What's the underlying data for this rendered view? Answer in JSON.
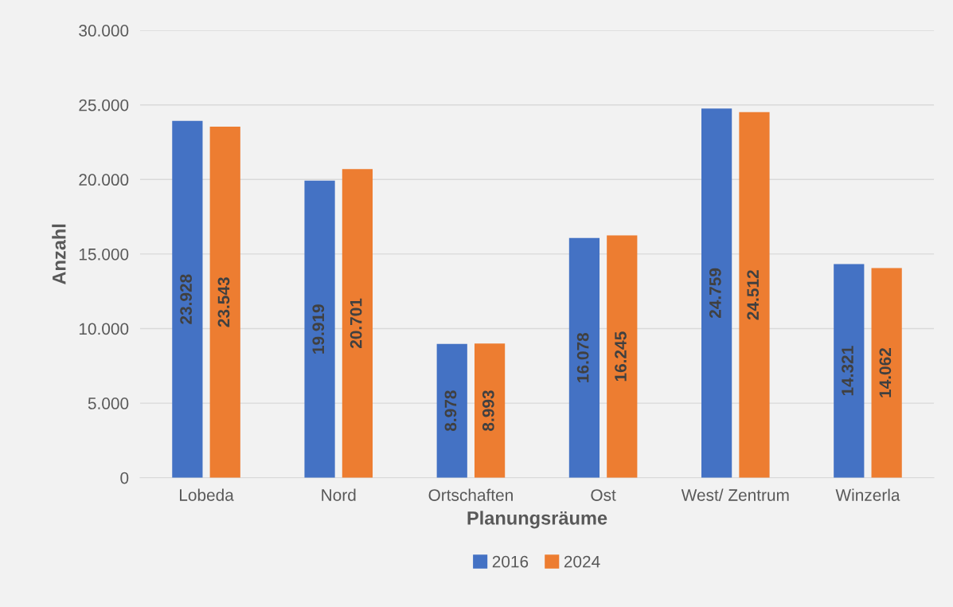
{
  "chart_data": {
    "type": "bar",
    "xlabel": "Planungsräume",
    "ylabel": "Anzahl",
    "categories": [
      "Lobeda",
      "Nord",
      "Ortschaften",
      "Ost",
      "West/ Zentrum",
      "Winzerla"
    ],
    "series": [
      {
        "name": "2016",
        "color": "#4472c4",
        "values": [
          23928,
          19919,
          8978,
          16078,
          24759,
          14321
        ],
        "value_labels": [
          "23.928",
          "19.919",
          "8.978",
          "16.078",
          "24.759",
          "14.321"
        ]
      },
      {
        "name": "2024",
        "color": "#ed7d31",
        "values": [
          23543,
          20701,
          8993,
          16245,
          24512,
          14062
        ],
        "value_labels": [
          "23.543",
          "20.701",
          "8.993",
          "16.245",
          "24.512",
          "14.062"
        ]
      }
    ],
    "ylim": [
      0,
      30000
    ],
    "yticks": [
      0,
      {
        "value": 5000,
        "label": "5.000"
      },
      {
        "value": 10000,
        "label": "10.000"
      },
      {
        "value": 15000,
        "label": "15.000"
      },
      {
        "value": 20000,
        "label": "20.000"
      },
      {
        "value": 25000,
        "label": "25.000"
      },
      {
        "value": 30000,
        "label": "30.000"
      }
    ],
    "grid": "y",
    "legend": "bottom"
  }
}
